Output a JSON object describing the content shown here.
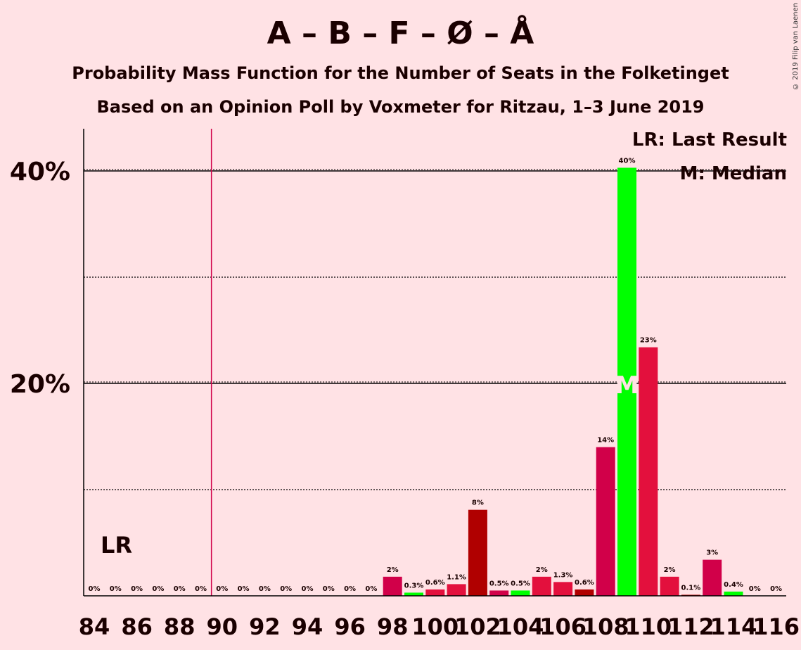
{
  "header": {
    "title": "A – B – F – Ø – Å",
    "subtitle1": "Probability Mass Function for the Number of Seats in the Folketinget",
    "subtitle2": "Based on an Opinion Poll by Voxmeter for Ritzau, 1–3 June 2019",
    "copyright": "© 2019 Filip van Laenen"
  },
  "legend": {
    "last_result": "LR: Last Result",
    "median": "M: Median"
  },
  "chart_data": {
    "type": "bar",
    "title": "A – B – F – Ø – Å",
    "subtitle": "Probability Mass Function for the Number of Seats in the Folketinget",
    "x": [
      84,
      85,
      86,
      87,
      88,
      89,
      90,
      91,
      92,
      93,
      94,
      95,
      96,
      97,
      98,
      99,
      100,
      101,
      102,
      103,
      104,
      105,
      106,
      107,
      108,
      109,
      110,
      111,
      112,
      113,
      114,
      115,
      116
    ],
    "values": [
      0,
      0,
      0,
      0,
      0,
      0,
      0,
      0,
      0,
      0,
      0,
      0,
      0,
      0,
      1.8,
      0.3,
      0.6,
      1.1,
      8.1,
      0.5,
      0.5,
      1.8,
      1.3,
      0.6,
      14.0,
      40.3,
      23.4,
      1.8,
      0.1,
      3.4,
      0.4,
      0,
      0
    ],
    "labels": [
      "0%",
      "0%",
      "0%",
      "0%",
      "0%",
      "0%",
      "0%",
      "0%",
      "0%",
      "0%",
      "0%",
      "0%",
      "0%",
      "0%",
      "2%",
      "0.3%",
      "0.6%",
      "1.1%",
      "8%",
      "0.5%",
      "0.5%",
      "2%",
      "1.3%",
      "0.6%",
      "14%",
      "40%",
      "23%",
      "2%",
      "0.1%",
      "3%",
      "0.4%",
      "0%",
      "0%"
    ],
    "colors": [
      "#D10049",
      "#00FF00",
      "#E3103D",
      "#E3103D",
      "#D10049",
      "#D10049",
      "#D10049",
      "#00FF00",
      "#E3103D",
      "#E3103D",
      "#D10049",
      "#D10049",
      "#D10049",
      "#00FF00",
      "#D10049",
      "#00FF00",
      "#E3103D",
      "#E3103D",
      "#B00000",
      "#D10049",
      "#00FF00",
      "#E3103D",
      "#E3103D",
      "#B00000",
      "#D10049",
      "#00FF00",
      "#E3103D",
      "#E3103D",
      "#B00000",
      "#D10049",
      "#00FF00",
      "#E3103D",
      "#E3103D"
    ],
    "x_tick_labels": [
      "84",
      "86",
      "88",
      "90",
      "92",
      "94",
      "96",
      "98",
      "100",
      "102",
      "104",
      "106",
      "108",
      "110",
      "112",
      "114",
      "116"
    ],
    "y_tick_labels": [
      "20%",
      "40%"
    ],
    "y_ticks": [
      20,
      40
    ],
    "y_minor_gridlines": [
      10,
      30
    ],
    "ylim": [
      0,
      44
    ],
    "last_result": {
      "x": 89.5,
      "label": "LR"
    },
    "median": {
      "x": 109,
      "label": "M"
    },
    "grid": true,
    "legend_placement": "top-right"
  }
}
